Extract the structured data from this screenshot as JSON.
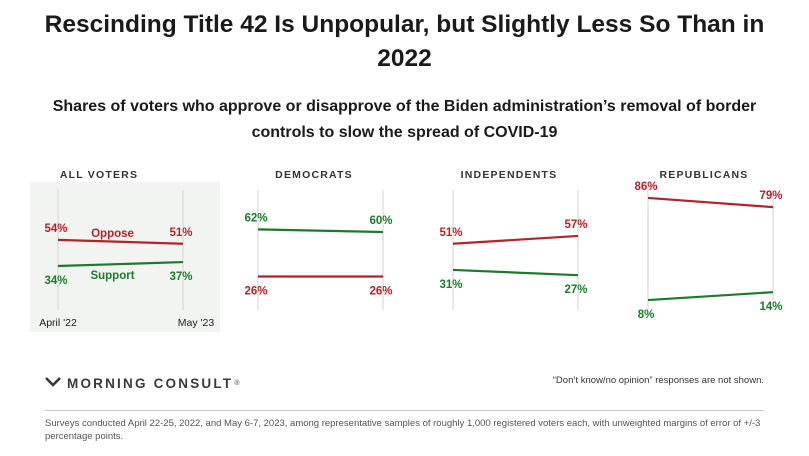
{
  "title": "Rescinding Title 42 Is Unpopular, but Slightly Less So Than in 2022",
  "subtitle": "Shares of voters who approve or disapprove of the Biden administration’s removal of border controls to slow the spread of COVID-19",
  "chart_data": [
    {
      "type": "line",
      "panel_title": "ALL VOTERS",
      "x": [
        "April '22",
        "May '23"
      ],
      "series": [
        {
          "name": "Oppose",
          "values": [
            54,
            51
          ],
          "labels": [
            "54%",
            "51%"
          ],
          "color": "#b5222b"
        },
        {
          "name": "Support",
          "values": [
            34,
            37
          ],
          "labels": [
            "34%",
            "37%"
          ],
          "color": "#1b7a2b"
        }
      ],
      "ylim": [
        0,
        100
      ]
    },
    {
      "type": "line",
      "panel_title": "DEMOCRATS",
      "x": [
        "April '22",
        "May '23"
      ],
      "series": [
        {
          "name": "Oppose",
          "values": [
            26,
            26
          ],
          "labels": [
            "26%",
            "26%"
          ],
          "color": "#b5222b"
        },
        {
          "name": "Support",
          "values": [
            62,
            60
          ],
          "labels": [
            "62%",
            "60%"
          ],
          "color": "#1b7a2b"
        }
      ],
      "ylim": [
        0,
        100
      ]
    },
    {
      "type": "line",
      "panel_title": "INDEPENDENTS",
      "x": [
        "April '22",
        "May '23"
      ],
      "series": [
        {
          "name": "Oppose",
          "values": [
            51,
            57
          ],
          "labels": [
            "51%",
            "57%"
          ],
          "color": "#b5222b"
        },
        {
          "name": "Support",
          "values": [
            31,
            27
          ],
          "labels": [
            "31%",
            "27%"
          ],
          "color": "#1b7a2b"
        }
      ],
      "ylim": [
        0,
        100
      ]
    },
    {
      "type": "line",
      "panel_title": "REPUBLICANS",
      "x": [
        "April '22",
        "May '23"
      ],
      "series": [
        {
          "name": "Oppose",
          "values": [
            86,
            79
          ],
          "labels": [
            "86%",
            "79%"
          ],
          "color": "#b5222b"
        },
        {
          "name": "Support",
          "values": [
            8,
            14
          ],
          "labels": [
            "8%",
            "14%"
          ],
          "color": "#1b7a2b"
        }
      ],
      "ylim": [
        0,
        100
      ]
    }
  ],
  "highlight_color": "#f2f4f2",
  "footer": {
    "logo_text": "MORNING CONSULT",
    "logo_tm": "®",
    "logo_icon": "morning-consult-chevron-icon",
    "note": "“Don’t know/no opinion” responses are not shown.",
    "source": "Surveys conducted April 22-25, 2022, and May 6-7, 2023, among representative samples of roughly 1,000 registered voters each, with unweighted margins of error of +/-3 percentage points."
  }
}
